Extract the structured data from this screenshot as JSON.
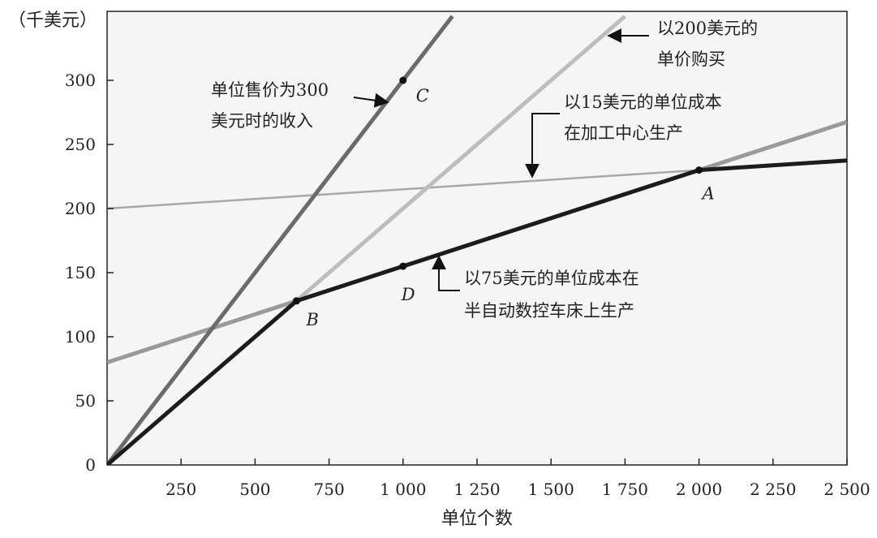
{
  "chart_data": {
    "type": "line",
    "unit_label": "（千美元）",
    "xlabel": "单位个数",
    "xlim": [
      0,
      2500
    ],
    "ylim": [
      0,
      350
    ],
    "x_ticks": [
      {
        "value": 250,
        "label": "250"
      },
      {
        "value": 500,
        "label": "500"
      },
      {
        "value": 750,
        "label": "750"
      },
      {
        "value": 1000,
        "label": "1 000"
      },
      {
        "value": 1250,
        "label": "1 250"
      },
      {
        "value": 1500,
        "label": "1 500"
      },
      {
        "value": 1750,
        "label": "1 750"
      },
      {
        "value": 2000,
        "label": "2 000"
      },
      {
        "value": 2250,
        "label": "2 250"
      },
      {
        "value": 2500,
        "label": "2 500"
      }
    ],
    "y_ticks": [
      {
        "value": 0,
        "label": "0"
      },
      {
        "value": 50,
        "label": "50"
      },
      {
        "value": 100,
        "label": "100"
      },
      {
        "value": 150,
        "label": "150"
      },
      {
        "value": 200,
        "label": "200"
      },
      {
        "value": 250,
        "label": "250"
      },
      {
        "value": 300,
        "label": "300"
      }
    ],
    "grid": false,
    "series": [
      {
        "id": "revenue",
        "x": [
          0,
          1166.7
        ],
        "y": [
          0,
          350
        ],
        "color": "#6b6b6b",
        "width": 5
      },
      {
        "id": "buy",
        "x": [
          0,
          1750
        ],
        "y": [
          0,
          350
        ],
        "color": "#bdbdbd",
        "width": 5
      },
      {
        "id": "cnc",
        "x": [
          0,
          2500
        ],
        "y": [
          80,
          267.5
        ],
        "color": "#9a9a9a",
        "width": 5
      },
      {
        "id": "center",
        "x": [
          0,
          2500
        ],
        "y": [
          200,
          237.5
        ],
        "color": "#a8a8a8",
        "width": 2.5
      },
      {
        "id": "min-cost",
        "x": [
          0,
          640,
          2000,
          2500
        ],
        "y": [
          0,
          128,
          230,
          237.5
        ],
        "color": "#1c1c1c",
        "width": 5
      }
    ],
    "points": [
      {
        "label": "A",
        "x": 2000,
        "y": 230,
        "dx": 4,
        "dy": 36
      },
      {
        "label": "B",
        "x": 640,
        "y": 128,
        "dx": 12,
        "dy": 30
      },
      {
        "label": "C",
        "x": 1000,
        "y": 300,
        "dx": 16,
        "dy": 26
      },
      {
        "label": "D",
        "x": 1000,
        "y": 155,
        "dx": -2,
        "dy": 42
      }
    ],
    "annotations": [
      {
        "id": "revenue",
        "lines": [
          "单位售价为300",
          "美元时的收入"
        ]
      },
      {
        "id": "buy",
        "lines": [
          "以200美元的",
          "单价购买"
        ]
      },
      {
        "id": "center",
        "lines": [
          "以15美元的单位成本",
          "在加工中心生产"
        ]
      },
      {
        "id": "cnc",
        "lines": [
          "以75美元的单位成本在",
          "半自动数控车床上生产"
        ]
      }
    ]
  }
}
